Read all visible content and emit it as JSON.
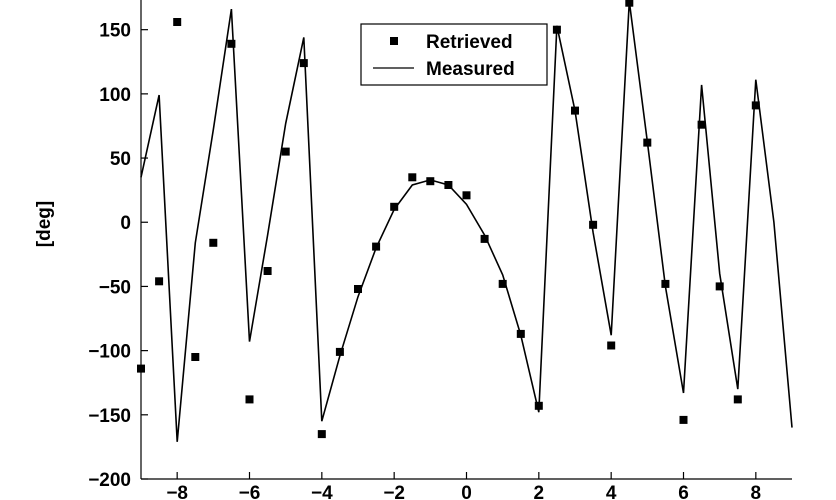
{
  "chart_data": {
    "type": "line",
    "title": "",
    "xlabel": "",
    "ylabel": "[deg]",
    "xlim": [
      -9,
      9
    ],
    "ylim": [
      -200,
      170
    ],
    "x_ticks": [
      -8,
      -6,
      -4,
      -2,
      0,
      2,
      4,
      6,
      8
    ],
    "x_tick_labels": [
      "−8",
      "−6",
      "−4",
      "−2",
      "0",
      "2",
      "4",
      "6",
      "8"
    ],
    "y_ticks": [
      150,
      100,
      50,
      0,
      -50,
      -100,
      -150,
      -200
    ],
    "y_tick_labels": [
      "150",
      "100",
      "50",
      "0",
      "−50",
      "−100",
      "−150",
      "−200"
    ],
    "grid": false,
    "legend_position": "top-center",
    "series": [
      {
        "name": "Retrieved",
        "kind": "markers",
        "color": "#000000",
        "x": [
          -9,
          -8.5,
          -8,
          -7.5,
          -7,
          -6.5,
          -6,
          -5.5,
          -5,
          -4.5,
          -4,
          -3.5,
          -3,
          -2.5,
          -2,
          -1.5,
          -1,
          -0.5,
          0,
          0.5,
          1,
          1.5,
          2,
          2.5,
          3,
          3.5,
          4,
          4.5,
          5,
          5.5,
          6,
          6.5,
          7,
          7.5,
          8
        ],
        "y": [
          -114,
          -46,
          156,
          -105,
          -16,
          139,
          -138,
          -38,
          55,
          124,
          -165,
          -101,
          -52,
          -19,
          12,
          35,
          32,
          29,
          21,
          -13,
          -48,
          -87,
          -143,
          150,
          87,
          -2,
          -96,
          171,
          62,
          -48,
          -154,
          76,
          -50,
          -138,
          91
        ]
      },
      {
        "name": "Measured",
        "kind": "line",
        "color": "#000000",
        "x": [
          -9,
          -8.5,
          -8,
          -7.5,
          -7,
          -6.5,
          -6,
          -5.5,
          -5,
          -4.5,
          -4,
          -3.5,
          -3,
          -2.5,
          -2,
          -1.5,
          -1,
          -0.5,
          0,
          0.5,
          1,
          1.5,
          2,
          2.5,
          3,
          3.5,
          4,
          4.5,
          5,
          5.5,
          6,
          6.5,
          7,
          7.5,
          8,
          8.5,
          9
        ],
        "y": [
          35,
          99,
          -171,
          -16,
          72,
          166,
          -93,
          -10,
          77,
          144,
          -155,
          -104,
          -58,
          -20,
          10,
          29,
          33,
          29,
          14,
          -10,
          -41,
          -88,
          -148,
          153,
          87,
          -8,
          -88,
          172,
          63,
          -50,
          -133,
          107,
          -40,
          -130,
          111,
          0,
          -160
        ]
      }
    ]
  }
}
